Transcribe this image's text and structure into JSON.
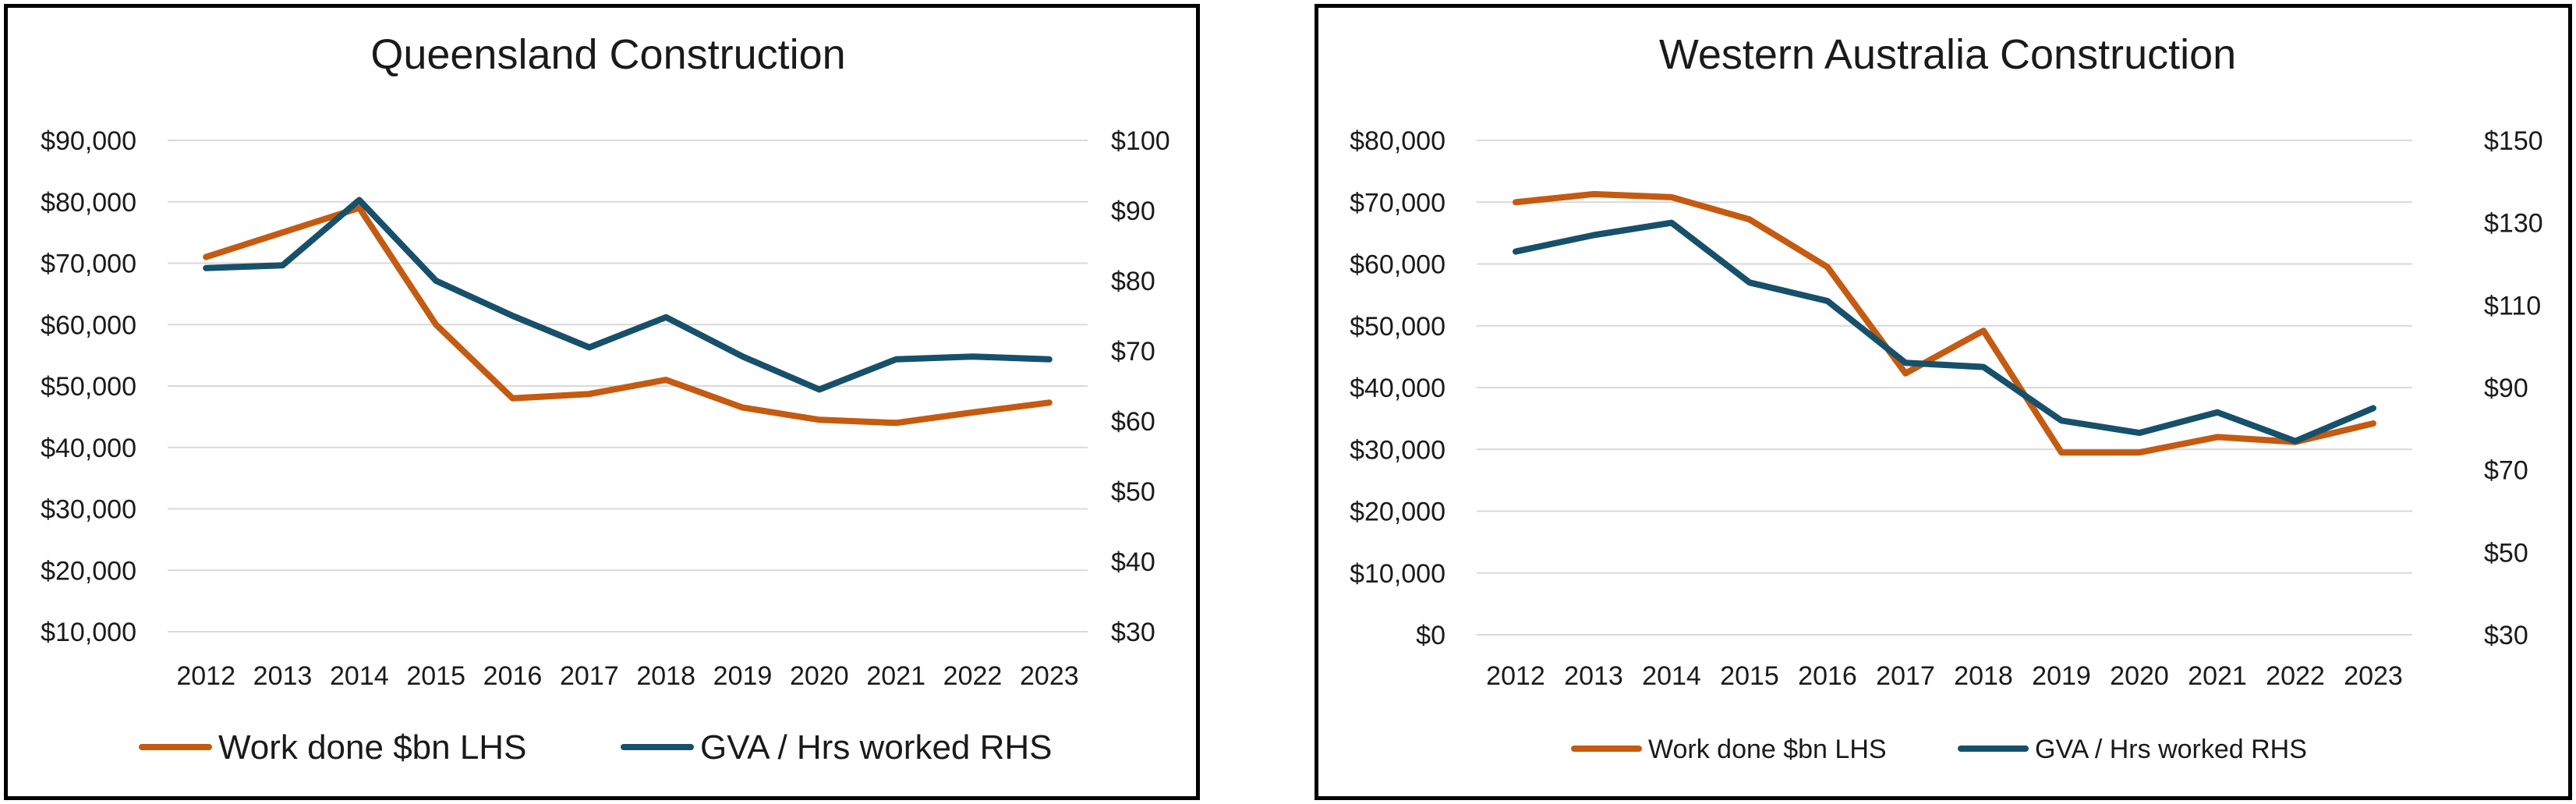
{
  "colors": {
    "work_done": "#C55A11",
    "gva_hours": "#17506B",
    "grid": "#D9D9D9"
  },
  "chart_data": [
    {
      "type": "line",
      "title": "Queensland Construction",
      "categories": [
        "2012",
        "2013",
        "2014",
        "2015",
        "2016",
        "2017",
        "2018",
        "2019",
        "2020",
        "2021",
        "2022",
        "2023"
      ],
      "y_left": {
        "min": 10000,
        "max": 90000,
        "step": 10000,
        "tick_labels": [
          "$10,000",
          "$20,000",
          "$30,000",
          "$40,000",
          "$50,000",
          "$60,000",
          "$70,000",
          "$80,000",
          "$90,000"
        ]
      },
      "y_right": {
        "min": 30,
        "max": 100,
        "step": 10,
        "tick_labels": [
          "$30",
          "$40",
          "$50",
          "$60",
          "$70",
          "$80",
          "$90",
          "$100"
        ]
      },
      "grid": true,
      "legend_position": "bottom",
      "series": [
        {
          "name": "Work done $bn LHS",
          "axis": "left",
          "color": "#C55A11",
          "values": [
            71000,
            75000,
            79000,
            60000,
            48000,
            48700,
            51000,
            46500,
            44500,
            44000,
            45700,
            47300
          ]
        },
        {
          "name": "GVA / Hrs worked RHS",
          "axis": "right",
          "color": "#17506B",
          "values": [
            81.8,
            82.2,
            91.5,
            80.0,
            75.0,
            70.5,
            74.8,
            69.2,
            64.5,
            68.8,
            69.2,
            68.8
          ]
        }
      ]
    },
    {
      "type": "line",
      "title": "Western Australia Construction",
      "categories": [
        "2012",
        "2013",
        "2014",
        "2015",
        "2016",
        "2017",
        "2018",
        "2019",
        "2020",
        "2021",
        "2022",
        "2023"
      ],
      "y_left": {
        "min": 0,
        "max": 80000,
        "step": 10000,
        "tick_labels": [
          "$0",
          "$10,000",
          "$20,000",
          "$30,000",
          "$40,000",
          "$50,000",
          "$60,000",
          "$70,000",
          "$80,000"
        ]
      },
      "y_right": {
        "min": 30,
        "max": 150,
        "step": 20,
        "tick_labels": [
          "$30",
          "$50",
          "$70",
          "$90",
          "$110",
          "$130",
          "$150"
        ]
      },
      "grid": true,
      "legend_position": "bottom",
      "series": [
        {
          "name": "Work done $bn LHS",
          "axis": "left",
          "color": "#C55A11",
          "values": [
            70000,
            71300,
            70800,
            67200,
            59500,
            42300,
            49200,
            29500,
            29500,
            32000,
            31200,
            34200
          ]
        },
        {
          "name": "GVA / Hrs worked RHS",
          "axis": "right",
          "color": "#17506B",
          "values": [
            123,
            127,
            130,
            115.5,
            111,
            96,
            95,
            82,
            79,
            84,
            77,
            85
          ]
        }
      ]
    }
  ]
}
